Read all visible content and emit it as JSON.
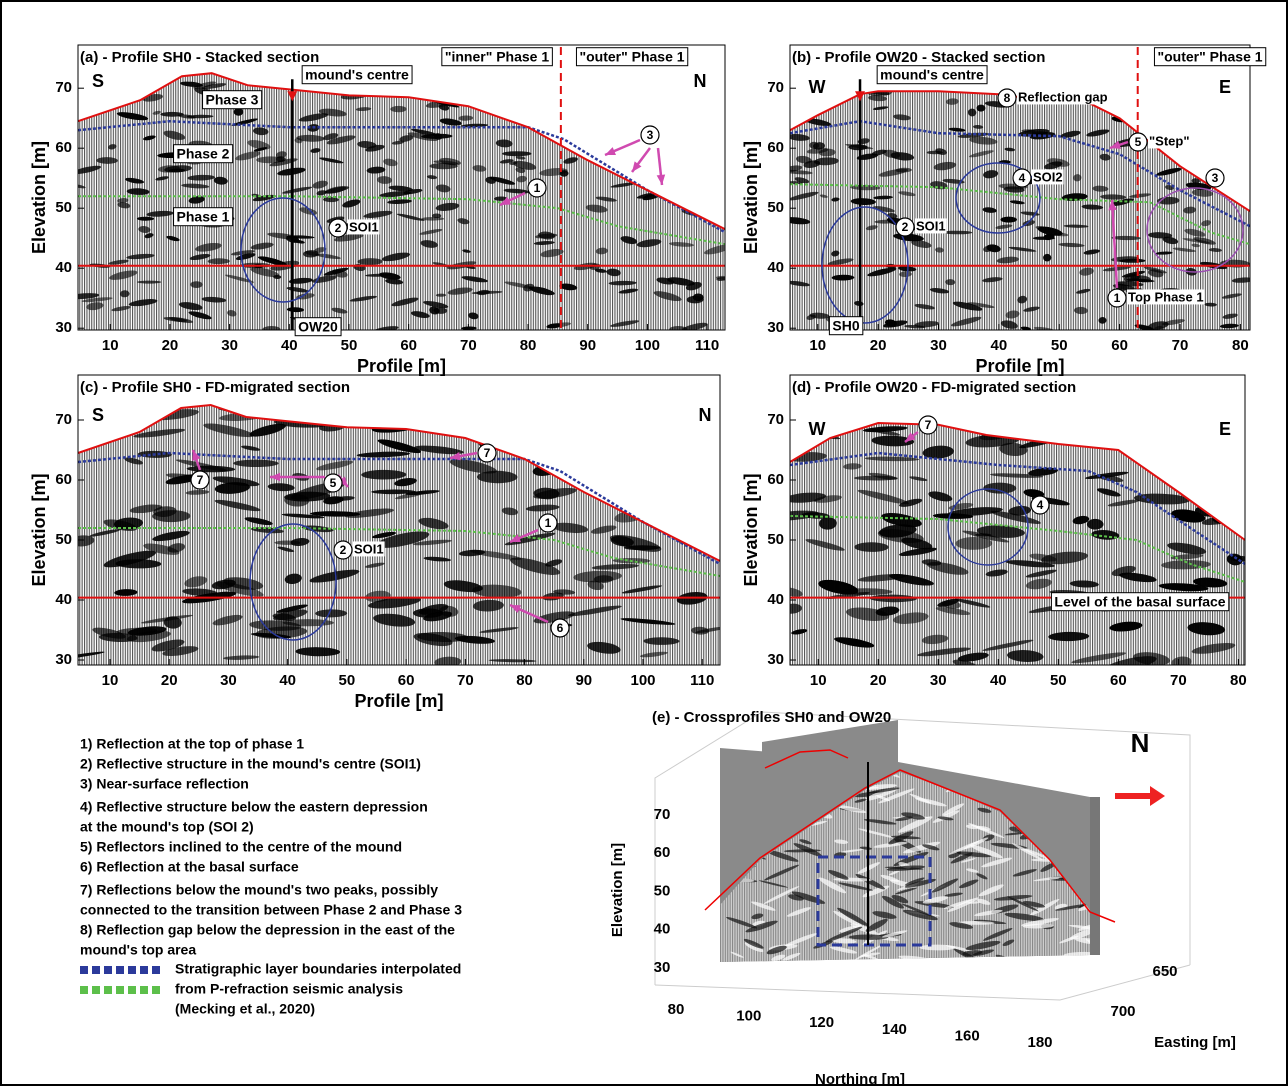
{
  "panels": [
    {
      "title": "(a) - Profile SH0 - Stacked section",
      "ylabel": "Elevation [m]",
      "xlabel": "Profile [m]",
      "xlim": [
        4.6,
        113
      ],
      "ylim": [
        29.7,
        77.2
      ],
      "xticks": [
        10,
        20,
        30,
        40,
        50,
        60,
        70,
        80,
        90,
        100,
        110
      ],
      "yticks": [
        30,
        40,
        50,
        60,
        70
      ],
      "labels": [
        {
          "text": "S"
        },
        {
          "text": "N"
        },
        {
          "text": "Phase 3"
        },
        {
          "text": "Phase 2"
        },
        {
          "text": "Phase 1"
        },
        {
          "text": "mound's centre"
        },
        {
          "text": "OW20"
        },
        {
          "num": 1
        },
        {
          "num": 2,
          "text": "SOI1"
        },
        {
          "num": 3
        },
        {
          "text": "\"inner\" Phase 1"
        },
        {
          "text": "\"outer\" Phase 1"
        }
      ]
    },
    {
      "title": "(b) - Profile OW20 - Stacked section",
      "ylabel": "Elevation [m]",
      "xlabel": "Profile [m]",
      "xlim": [
        5.4,
        81.6
      ],
      "ylim": [
        29.7,
        77.2
      ],
      "xticks": [
        10,
        20,
        30,
        40,
        50,
        60,
        70,
        80
      ],
      "yticks": [
        30,
        40,
        50,
        60,
        70
      ],
      "labels": [
        {
          "text": "W"
        },
        {
          "text": "E"
        },
        {
          "text": "mound's centre"
        },
        {
          "num": 8,
          "text": "Reflection gap"
        },
        {
          "num": 5,
          "text": "\"Step\""
        },
        {
          "num": 3
        },
        {
          "num": 4,
          "text": "SOI2"
        },
        {
          "num": 2,
          "text": "SOI1"
        },
        {
          "num": 1,
          "text": "Top Phase 1"
        },
        {
          "text": "SH0"
        },
        {
          "text": "\"outer\" Phase 1"
        }
      ]
    },
    {
      "title": "(c) - Profile SH0 - FD-migrated section",
      "ylabel": "Elevation [m]",
      "xlabel": "Profile [m]",
      "xlim": [
        4.6,
        113
      ],
      "ylim": [
        29.17,
        77.5
      ],
      "xticks": [
        10,
        20,
        30,
        40,
        50,
        60,
        70,
        80,
        90,
        100,
        110
      ],
      "yticks": [
        30,
        40,
        50,
        60,
        70
      ],
      "labels": [
        {
          "text": "S"
        },
        {
          "text": "N"
        },
        {
          "num": 7
        },
        {
          "num": 7
        },
        {
          "num": 5
        },
        {
          "num": 1
        },
        {
          "num": 2,
          "text": "SOI1"
        },
        {
          "num": 6
        }
      ]
    },
    {
      "title": "(d) - Profile OW20 - FD-migrated section",
      "ylabel": "Elevation [m]",
      "xlabel": null,
      "xlim": [
        5.3,
        81.1
      ],
      "ylim": [
        29.17,
        77.5
      ],
      "xticks": [
        10,
        20,
        30,
        40,
        50,
        60,
        70,
        80
      ],
      "yticks": [
        30,
        40,
        50,
        60,
        70
      ],
      "labels": [
        {
          "text": "W"
        },
        {
          "text": "E"
        },
        {
          "num": 7
        },
        {
          "num": 4
        },
        {
          "text": "Level of the basal surface"
        }
      ]
    }
  ],
  "crossprofile": {
    "title": "(e) - Crossprofiles SH0 and OW20",
    "north": "N",
    "ylabel": "Elevation [m]",
    "yticks": [
      30,
      40,
      50,
      60,
      70
    ],
    "xlabel": "Northing [m]",
    "xticks": [
      80,
      100,
      120,
      140,
      160,
      180
    ],
    "zlabel": "Easting [m]",
    "zticks": [
      650,
      700
    ]
  },
  "legend": {
    "items": [
      [
        "1) Reflection at the top of phase 1"
      ],
      [
        "2) Reflective structure in the mound's centre (SOI1)"
      ],
      [
        "3) Near-surface reflection"
      ],
      [
        "4) Reflective structure below the eastern depression",
        "at the mound's top (SOI 2)"
      ],
      [
        "5) Reflectors inclined to the centre of the mound"
      ],
      [
        "6) Reflection at the basal surface"
      ],
      [
        "7) Reflections below the mound's two peaks, possibly",
        "connected to the transition between Phase 2 and Phase 3"
      ],
      [
        "8) Reflection gap below the depression in the east of the",
        "mound's top area"
      ]
    ],
    "swatch_colors": [
      "#2b3a9b",
      "#5cbf4a"
    ],
    "swatch_text": [
      "Stratigraphic layer boundaries interpolated",
      "from P-refraction seismic analysis",
      "(Mecking et al., 2020)"
    ]
  }
}
